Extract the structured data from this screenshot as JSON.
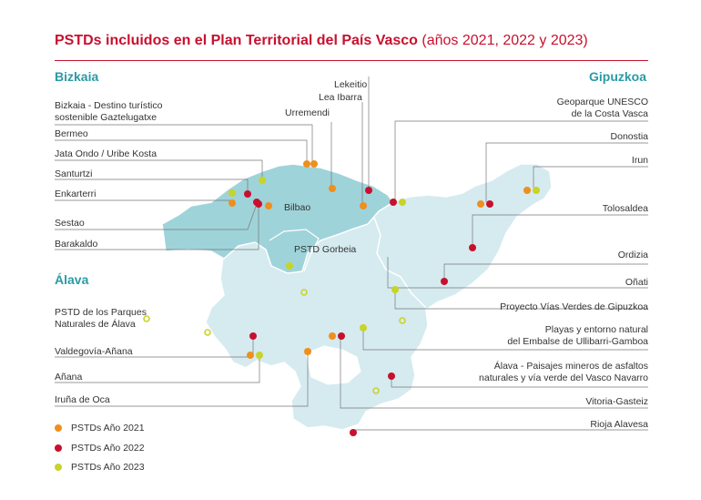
{
  "title": {
    "bold": "PSTDs incluidos en el Plan Territorial del País Vasco",
    "light": " (años 2021,  2022 y 2023)"
  },
  "colors": {
    "y2021": "#ef8f1d",
    "y2022": "#c8102e",
    "y2023": "#c8d32b",
    "bizkaia": "#9fd3da",
    "rest": "#d5ebf0",
    "border": "#ffffff",
    "accent": "#c8102e",
    "regionLabel": "#2a9aa5"
  },
  "regions": {
    "bizkaia": "Bizkaia",
    "gipuzkoa": "Gipuzkoa",
    "alava": "Álava"
  },
  "labels": {
    "gaztelugatxe": [
      "Bizkaia - Destino turístico",
      "sostenible Gaztelugatxe"
    ],
    "bermeo": "Bermeo",
    "jata": "Jata Ondo / Uribe Kosta",
    "santurtzi": "Santurtzi",
    "enkarterri": "Enkarterri",
    "sestao": "Sestao",
    "barakaldo": "Barakaldo",
    "lekeitio": "Lekeitio",
    "lea": "Lea Ibarra",
    "urremendi": "Urremendi",
    "geoparque": [
      "Geoparque UNESCO",
      "de la Costa Vasca"
    ],
    "donostia": "Donostia",
    "irun": "Irun",
    "tolosaldea": "Tolosaldea",
    "ordizia": "Ordizia",
    "onati": "Oñati",
    "viasverdes": "Proyecto Vías Verdes  de Gipuzkoa",
    "ullibarri": [
      "Playas y entorno natural",
      "del Embalse de Ullibarri-Gamboa"
    ],
    "asfaltos": [
      "Álava - Paisajes mineros de asfaltos",
      "naturales y vía verde del Vasco Navarro"
    ],
    "vitoria": "Vitoria-Gasteiz",
    "rioja": "Rioja Alavesa",
    "parques": [
      "PSTD de los Parques",
      "Naturales de Álava"
    ],
    "valdegovia": "Valdegovía-Añana",
    "anana": "Añana",
    "iruna": "Iruña de Oca",
    "bilbao": "Bilbao",
    "gorbeia": "PSTD Gorbeia"
  },
  "legend": [
    {
      "label": "PSTDs Año 2021",
      "year": "2021"
    },
    {
      "label": "PSTDs Año 2022",
      "year": "2022"
    },
    {
      "label": "PSTDs Año 2023",
      "year": "2023"
    }
  ],
  "points": [
    {
      "name": "bermeo",
      "year": "2021"
    },
    {
      "name": "gaztelugatxe",
      "year": "2021"
    },
    {
      "name": "jata",
      "year": "2023"
    },
    {
      "name": "urremendi",
      "year": "2021"
    },
    {
      "name": "lea",
      "year": "2021"
    },
    {
      "name": "lekeitio",
      "year": "2022"
    },
    {
      "name": "geoparque",
      "year": "2023"
    },
    {
      "name": "santurtzi",
      "year": "2022"
    },
    {
      "name": "enkarterri",
      "year": "2023"
    },
    {
      "name": "sestao",
      "year": "2022"
    },
    {
      "name": "barakaldo",
      "year": "2022"
    },
    {
      "name": "bilbao-a",
      "year": "2021"
    },
    {
      "name": "bilbao-b",
      "year": "2021"
    },
    {
      "name": "gorbeia",
      "year": "2023"
    },
    {
      "name": "donostia-a",
      "year": "2021"
    },
    {
      "name": "donostia-b",
      "year": "2022"
    },
    {
      "name": "irun-a",
      "year": "2021"
    },
    {
      "name": "irun-b",
      "year": "2023"
    },
    {
      "name": "tolosaldea",
      "year": "2022"
    },
    {
      "name": "ordizia",
      "year": "2022"
    },
    {
      "name": "onati",
      "year": "2022"
    },
    {
      "name": "viasverdes",
      "year": "2023"
    },
    {
      "name": "ullibarri",
      "year": "2023"
    },
    {
      "name": "asfaltos",
      "year": "2022"
    },
    {
      "name": "vitoria-a",
      "year": "2021"
    },
    {
      "name": "vitoria-b",
      "year": "2022"
    },
    {
      "name": "rioja",
      "year": "2022"
    },
    {
      "name": "valdegovia-a",
      "year": "2022"
    },
    {
      "name": "valdegovia-b",
      "year": "2021"
    },
    {
      "name": "anana",
      "year": "2023"
    },
    {
      "name": "iruna",
      "year": "2021"
    }
  ]
}
